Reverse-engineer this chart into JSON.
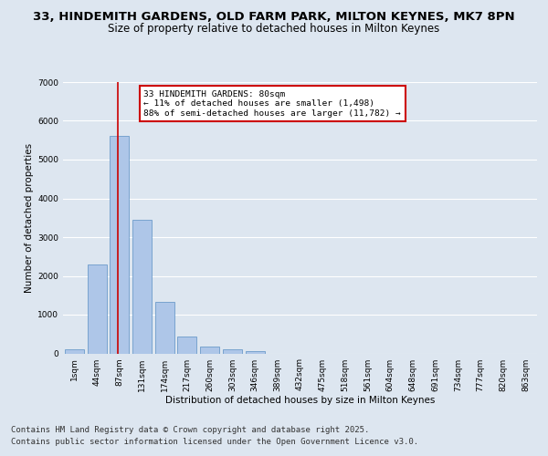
{
  "title_line1": "33, HINDEMITH GARDENS, OLD FARM PARK, MILTON KEYNES, MK7 8PN",
  "title_line2": "Size of property relative to detached houses in Milton Keynes",
  "xlabel": "Distribution of detached houses by size in Milton Keynes",
  "ylabel": "Number of detached properties",
  "categories": [
    "1sqm",
    "44sqm",
    "87sqm",
    "131sqm",
    "174sqm",
    "217sqm",
    "260sqm",
    "303sqm",
    "346sqm",
    "389sqm",
    "432sqm",
    "475sqm",
    "518sqm",
    "561sqm",
    "604sqm",
    "648sqm",
    "691sqm",
    "734sqm",
    "777sqm",
    "820sqm",
    "863sqm"
  ],
  "values": [
    100,
    2300,
    5600,
    3450,
    1330,
    440,
    175,
    95,
    50,
    0,
    0,
    0,
    0,
    0,
    0,
    0,
    0,
    0,
    0,
    0,
    0
  ],
  "bar_color": "#aec6e8",
  "bar_edge_color": "#5a8fc3",
  "vline_color": "#cc0000",
  "annotation_text": "33 HINDEMITH GARDENS: 80sqm\n← 11% of detached houses are smaller (1,498)\n88% of semi-detached houses are larger (11,782) →",
  "annotation_box_color": "#ffffff",
  "annotation_box_edge": "#cc0000",
  "ylim": [
    0,
    7000
  ],
  "yticks": [
    0,
    1000,
    2000,
    3000,
    4000,
    5000,
    6000,
    7000
  ],
  "background_color": "#dde6f0",
  "plot_bg_color": "#dde6f0",
  "grid_color": "#ffffff",
  "footer_line1": "Contains HM Land Registry data © Crown copyright and database right 2025.",
  "footer_line2": "Contains public sector information licensed under the Open Government Licence v3.0.",
  "title_fontsize": 9.5,
  "subtitle_fontsize": 8.5,
  "label_fontsize": 7.5,
  "tick_fontsize": 6.5,
  "footer_fontsize": 6.5
}
